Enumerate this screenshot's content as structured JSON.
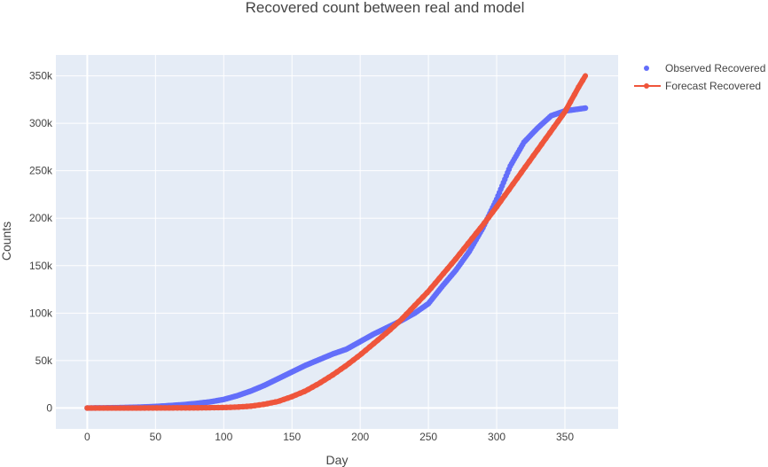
{
  "chart_data": {
    "type": "line",
    "title": "Recovered count between real and model",
    "xlabel": "Day",
    "ylabel": "Counts",
    "xlim": [
      -23,
      389
    ],
    "ylim": [
      -22000,
      372000
    ],
    "x_ticks": [
      0,
      50,
      100,
      150,
      200,
      250,
      300,
      350
    ],
    "x_tick_labels": [
      "0",
      "50",
      "100",
      "150",
      "200",
      "250",
      "300",
      "350"
    ],
    "y_ticks": [
      0,
      50000,
      100000,
      150000,
      200000,
      250000,
      300000,
      350000
    ],
    "y_tick_labels": [
      "0",
      "50k",
      "100k",
      "150k",
      "200k",
      "250k",
      "300k",
      "350k"
    ],
    "grid": true,
    "legend_position": "top-right",
    "colors": {
      "plot_bg": "#e5ecf6",
      "grid": "#ffffff",
      "observed": "#636efa",
      "forecast": "#ef553b"
    },
    "series": [
      {
        "name": "Observed Recovered",
        "mode": "markers",
        "x": [
          0,
          10,
          20,
          30,
          40,
          50,
          60,
          70,
          80,
          90,
          100,
          110,
          120,
          130,
          140,
          150,
          160,
          170,
          180,
          190,
          200,
          210,
          220,
          230,
          240,
          250,
          260,
          270,
          280,
          290,
          300,
          310,
          320,
          330,
          340,
          350,
          360,
          365
        ],
        "y": [
          0,
          100,
          300,
          600,
          1000,
          1600,
          2500,
          3500,
          4800,
          6500,
          9000,
          13000,
          18000,
          24000,
          31000,
          38000,
          45000,
          51000,
          57000,
          62000,
          70000,
          78000,
          85000,
          92000,
          100000,
          110000,
          128000,
          145000,
          165000,
          190000,
          220000,
          255000,
          280000,
          295000,
          308000,
          313000,
          315000,
          316000
        ]
      },
      {
        "name": "Forecast Recovered",
        "mode": "lines+markers",
        "x": [
          0,
          20,
          40,
          60,
          80,
          100,
          110,
          120,
          130,
          140,
          150,
          160,
          170,
          180,
          190,
          200,
          210,
          220,
          230,
          240,
          250,
          260,
          270,
          280,
          290,
          300,
          310,
          320,
          330,
          340,
          350,
          360,
          365
        ],
        "y": [
          0,
          0,
          0,
          100,
          200,
          500,
          1000,
          2000,
          4000,
          7000,
          12000,
          18000,
          26000,
          35000,
          45000,
          56000,
          68000,
          80000,
          93000,
          108000,
          123000,
          140000,
          157000,
          175000,
          193000,
          212000,
          232000,
          252000,
          272000,
          292000,
          312000,
          338000,
          350000
        ]
      }
    ]
  }
}
